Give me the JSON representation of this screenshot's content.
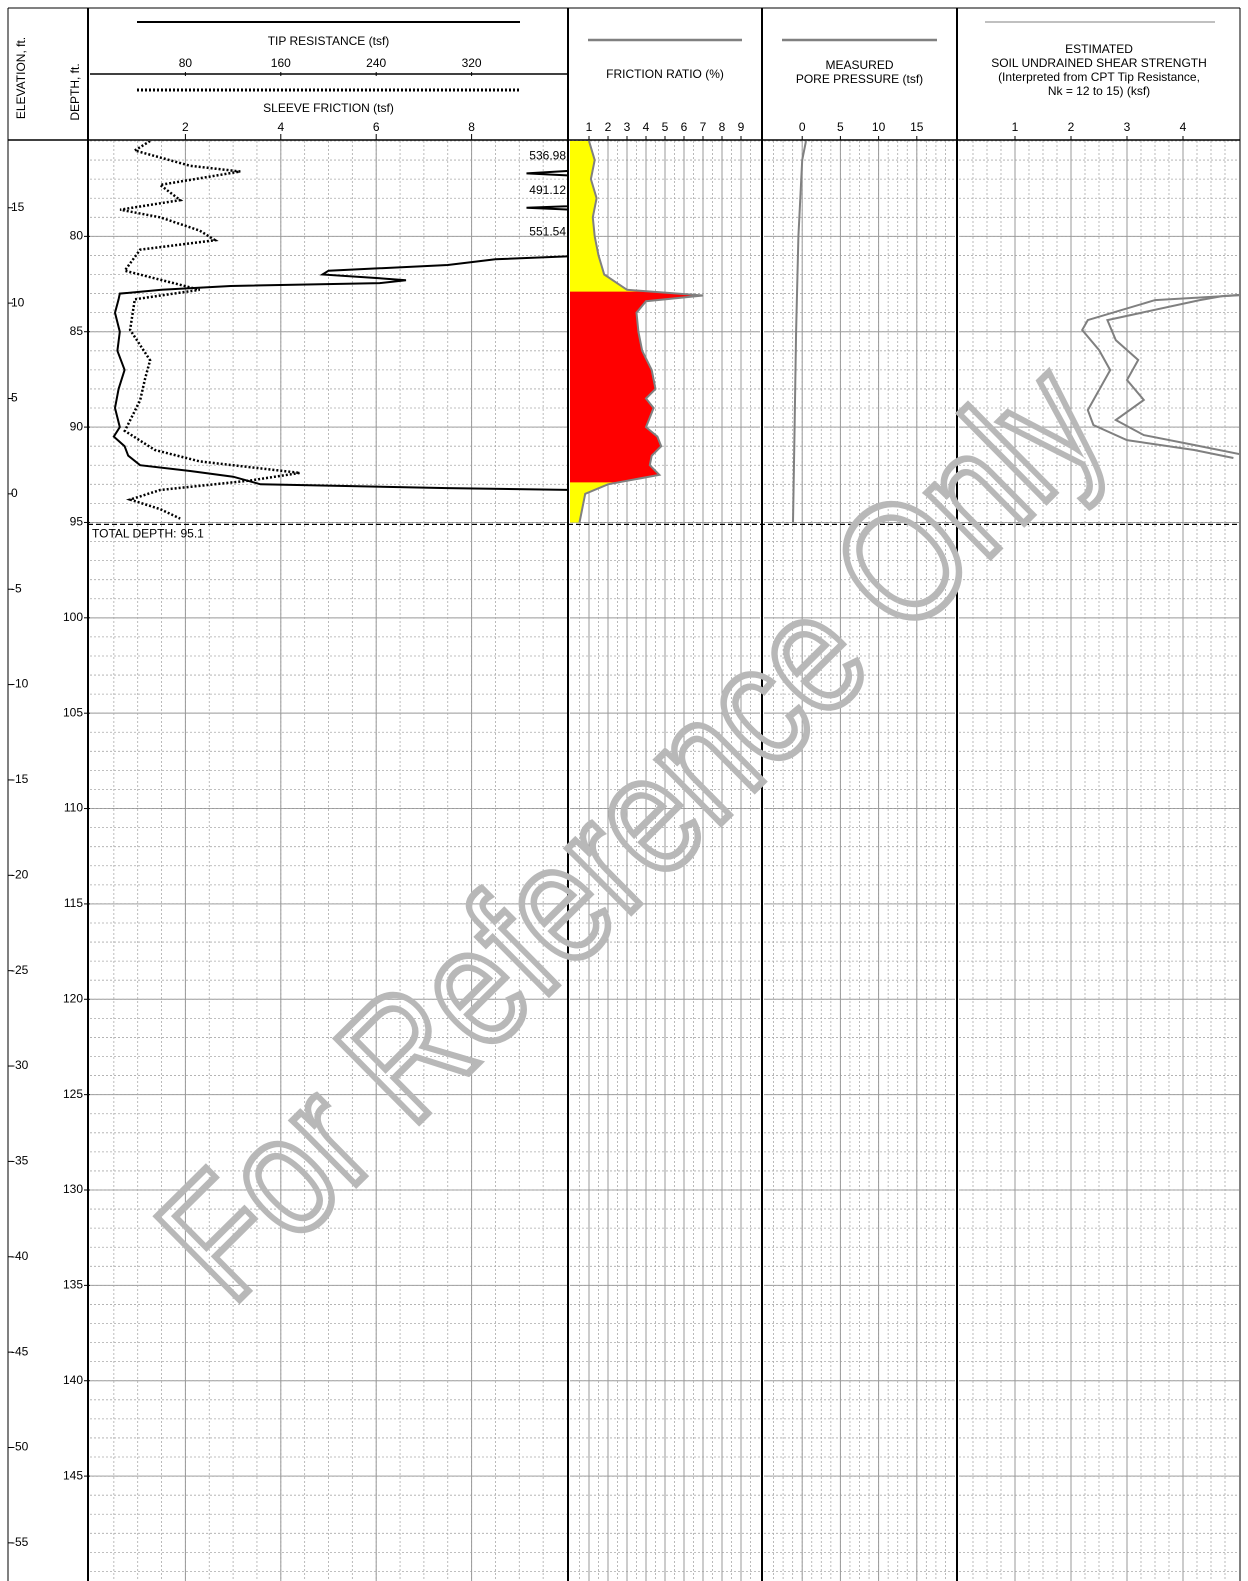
{
  "headers": {
    "elevation": "ELEVATION, ft.",
    "depth": "DEPTH, ft."
  },
  "depth": {
    "ylim": [
      75,
      150.5
    ],
    "yticks": [
      80,
      85,
      90,
      95,
      100,
      105,
      110,
      115,
      120,
      125,
      130,
      135,
      140,
      145
    ]
  },
  "elevation": {
    "ylim": [
      18.5,
      -57
    ],
    "yticks": [
      15,
      10,
      5,
      0,
      -5,
      -10,
      -15,
      -20,
      -25,
      -30,
      -35,
      -40,
      -45,
      -50,
      -55
    ]
  },
  "total_depth": 95.1,
  "total_depth_label": "TOTAL DEPTH:",
  "watermark": "For Reference Only",
  "chart_data": [
    {
      "type": "line",
      "title": [
        "TIP RESISTANCE (tsf)"
      ],
      "x2_title": [
        "SLEEVE FRICTION (tsf)"
      ],
      "xlim": [
        0,
        400
      ],
      "xticks": [
        80,
        160,
        240,
        320
      ],
      "x2lim": [
        0,
        10
      ],
      "x2ticks": [
        2,
        4,
        6,
        8
      ],
      "series": [
        {
          "color": "#000000",
          "style": "solid",
          "x": [
            75.3,
            76.0,
            76.5,
            76.7,
            76.9,
            77.5,
            78.2,
            78.5,
            78.7,
            79.2,
            80.0,
            80.8,
            81.0,
            81.2,
            81.5,
            81.8,
            82.0,
            82.2,
            82.3,
            82.45,
            82.6,
            82.8,
            83.0,
            83.3,
            84,
            85,
            86,
            87,
            88,
            89,
            90,
            90.5,
            91,
            91.5,
            92,
            92.3,
            92.6,
            93.0,
            93.2,
            93.4,
            94,
            95.1
          ],
          "values": [
            520,
            540,
            420,
            366,
            430,
            520,
            495,
            366,
            440,
            520,
            551,
            430,
            420,
            340,
            300,
            200,
            195,
            243,
            265,
            243,
            118,
            60,
            25,
            24,
            21,
            25,
            23,
            29,
            24,
            21,
            25,
            20,
            29,
            32,
            42,
            84,
            120,
            143,
            300,
            520,
            540,
            560
          ]
        },
        {
          "color": "#000000",
          "style": "dotted",
          "axis": "x2",
          "x": [
            75,
            75.5,
            76.3,
            76.6,
            77.3,
            78.1,
            78.6,
            79,
            79.7,
            80.2,
            80.7,
            81.8,
            82.8,
            83.3,
            84.9,
            86.5,
            87.5,
            88.6,
            90.2,
            91.2,
            91.8,
            92.4,
            92.8,
            93.3,
            93.8,
            94.3,
            94.8
          ],
          "values": [
            1.26,
            0.94,
            2.1,
            3.15,
            1.47,
            1.89,
            0.63,
            1.47,
            2.3,
            2.62,
            1.05,
            0.73,
            2.3,
            0.94,
            0.84,
            1.26,
            1.15,
            1.05,
            0.73,
            1.36,
            2.3,
            4.4,
            3.36,
            1.47,
            0.84,
            1.47,
            1.89
          ]
        }
      ],
      "peaks": {
        "x": [
          75.8,
          77.6,
          79.8
        ],
        "values": [
          536.98,
          491.12,
          551.54
        ]
      }
    },
    {
      "type": "area",
      "title": [
        "FRICTION RATIO (%)"
      ],
      "xlim": [
        0,
        10
      ],
      "xticks": [
        1,
        2,
        3,
        4,
        5,
        6,
        7,
        8,
        9
      ],
      "series": [
        {
          "color": "#808080",
          "fill": "#ffff00",
          "x": [
            75,
            76,
            77,
            78,
            79,
            80,
            81,
            82,
            82.8,
            83.1,
            83.4,
            84,
            85,
            86,
            87,
            88,
            88.5,
            89,
            90,
            90.5,
            91,
            91.5,
            92,
            92.5,
            93,
            93.5,
            94,
            95
          ],
          "values": [
            1.0,
            1.3,
            1.1,
            1.4,
            1.2,
            1.3,
            1.5,
            1.8,
            3.0,
            7.0,
            4.0,
            3.5,
            3.6,
            3.8,
            4.3,
            4.5,
            4.0,
            4.4,
            4.0,
            4.6,
            4.8,
            4.3,
            4.2,
            4.7,
            2.0,
            0.8,
            0.7,
            0.5
          ]
        }
      ],
      "zones": [
        {
          "from": 82.9,
          "to": 92.9,
          "fill": "#ff0000"
        }
      ]
    },
    {
      "type": "line",
      "title": [
        "MEASURED",
        "PORE PRESSURE (tsf)"
      ],
      "xlim": [
        -5,
        20
      ],
      "xticks": [
        0,
        5,
        10,
        15
      ],
      "series": [
        {
          "color": "#808080",
          "style": "solid",
          "x": [
            75,
            76,
            80,
            85,
            90,
            95
          ],
          "values": [
            0.5,
            0,
            -0.5,
            -0.8,
            -1.0,
            -1.2
          ]
        }
      ]
    },
    {
      "type": "line",
      "title": [
        "ESTIMATED",
        "SOIL UNDRAINED SHEAR STRENGTH",
        "(Interpreted from CPT Tip Resistance,",
        "Nk = 12 to 15) (ksf)"
      ],
      "xlim": [
        0,
        5
      ],
      "xticks": [
        1,
        2,
        3,
        4
      ],
      "series": [
        {
          "color": "#808080",
          "style": "solid",
          "x": [
            83.0,
            83.34,
            84.39,
            84.91,
            85.96,
            87.01,
            88.06,
            89.11,
            89.89,
            90.68,
            91.2,
            91.62
          ],
          "values": [
            5.5,
            3.5,
            2.3,
            2.2,
            2.5,
            2.7,
            2.5,
            2.3,
            2.4,
            3.0,
            4.2,
            4.9
          ]
        },
        {
          "color": "#808080",
          "style": "solid",
          "x": [
            82.97,
            83.13,
            83.34,
            84.39,
            85.44,
            86.48,
            87.53,
            88.58,
            89.63,
            90.42,
            90.94,
            91.47
          ],
          "values": [
            5.5,
            4.7,
            4.3,
            2.65,
            2.8,
            3.2,
            3.0,
            3.3,
            2.8,
            3.3,
            4.2,
            5.1
          ]
        }
      ]
    }
  ]
}
